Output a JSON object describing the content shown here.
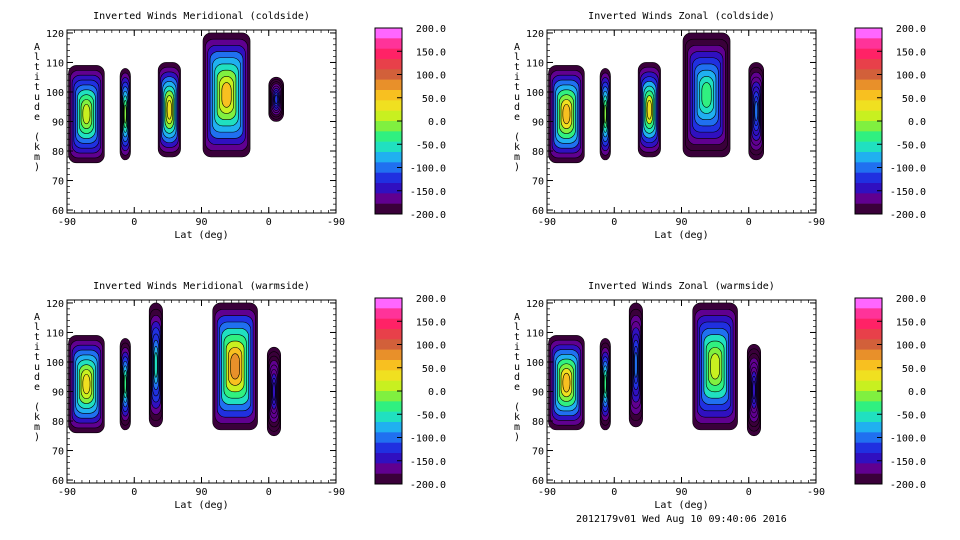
{
  "footer_text": "2012179v01 Wed Aug 10 09:40:06 2016",
  "colorbar": {
    "ticks": [
      "200.0",
      "150.0",
      "100.0",
      "50.0",
      "0.0",
      "-50.0",
      "-100.0",
      "-150.0",
      "-200.0"
    ],
    "colors": [
      "#ff66ff",
      "#ff3399",
      "#ff2266",
      "#e8404a",
      "#d2603a",
      "#e8902a",
      "#f8c020",
      "#f0e020",
      "#c8f020",
      "#80f040",
      "#30f080",
      "#20e0c0",
      "#20b0f0",
      "#2070f0",
      "#2030e0",
      "#3010c0",
      "#600090",
      "#3a003a"
    ]
  },
  "chart_data": [
    {
      "type": "heatmap",
      "title": "Inverted Winds Meridional (coldside)",
      "xlabel": "Lat (deg)",
      "ylabel": "Altitude (km)",
      "xticks": [
        "-90",
        "0",
        "90",
        "0",
        "-90"
      ],
      "yticks": [
        60,
        70,
        80,
        90,
        100,
        110,
        120
      ],
      "ylim": [
        59,
        121
      ],
      "zlim": [
        -200,
        200
      ],
      "colorbar_ticks": [
        200,
        150,
        100,
        50,
        0,
        -50,
        -100,
        -150,
        -200
      ],
      "regions": [
        {
          "lat": [
            -88,
            -40
          ],
          "alt": [
            76,
            109
          ],
          "core_value": 20
        },
        {
          "lat": [
            -19,
            -5
          ],
          "alt": [
            77,
            108
          ],
          "core_value": -20
        },
        {
          "lat": [
            32,
            62
          ],
          "alt": [
            78,
            110
          ],
          "core_value": 40
        },
        {
          "lat": [
            92,
            155
          ],
          "alt": [
            78,
            120
          ],
          "core_value": 45
        },
        {
          "lat": [
            180,
            200
          ],
          "alt": [
            90,
            105
          ],
          "core_value": -120
        }
      ]
    },
    {
      "type": "heatmap",
      "title": "Inverted Winds Zonal (coldside)",
      "xlabel": "Lat (deg)",
      "ylabel": "Altitude (km)",
      "xticks": [
        "-90",
        "0",
        "90",
        "0",
        "-90"
      ],
      "yticks": [
        60,
        70,
        80,
        90,
        100,
        110,
        120
      ],
      "ylim": [
        59,
        121
      ],
      "zlim": [
        -200,
        200
      ],
      "colorbar_ticks": [
        200,
        150,
        100,
        50,
        0,
        -50,
        -100,
        -150,
        -200
      ],
      "regions": [
        {
          "lat": [
            -88,
            -40
          ],
          "alt": [
            76,
            109
          ],
          "core_value": 60
        },
        {
          "lat": [
            -19,
            -5
          ],
          "alt": [
            77,
            108
          ],
          "core_value": 0
        },
        {
          "lat": [
            32,
            62
          ],
          "alt": [
            78,
            110
          ],
          "core_value": 35
        },
        {
          "lat": [
            92,
            155
          ],
          "alt": [
            78,
            120
          ],
          "core_value": -40
        },
        {
          "lat": [
            180,
            200
          ],
          "alt": [
            77,
            110
          ],
          "core_value": -100
        }
      ]
    },
    {
      "type": "heatmap",
      "title": "Inverted Winds Meridional (warmside)",
      "xlabel": "Lat (deg)",
      "ylabel": "Altitude (km)",
      "xticks": [
        "-90",
        "0",
        "90",
        "0",
        "-90"
      ],
      "yticks": [
        60,
        70,
        80,
        90,
        100,
        110,
        120
      ],
      "ylim": [
        59,
        121
      ],
      "zlim": [
        -200,
        200
      ],
      "colorbar_ticks": [
        200,
        150,
        100,
        50,
        0,
        -50,
        -100,
        -150,
        -200
      ],
      "regions": [
        {
          "lat": [
            -88,
            -40
          ],
          "alt": [
            76,
            109
          ],
          "core_value": 40
        },
        {
          "lat": [
            -19,
            -5
          ],
          "alt": [
            77,
            108
          ],
          "core_value": -30
        },
        {
          "lat": [
            20,
            38
          ],
          "alt": [
            78,
            120
          ],
          "core_value": -60
        },
        {
          "lat": [
            105,
            165
          ],
          "alt": [
            77,
            120
          ],
          "core_value": 80
        },
        {
          "lat": [
            178,
            196
          ],
          "alt": [
            75,
            105
          ],
          "core_value": -140
        }
      ]
    },
    {
      "type": "heatmap",
      "title": "Inverted Winds Zonal (warmside)",
      "xlabel": "Lat (deg)",
      "ylabel": "Altitude (km)",
      "xticks": [
        "-90",
        "0",
        "90",
        "0",
        "-90"
      ],
      "yticks": [
        60,
        70,
        80,
        90,
        100,
        110,
        120
      ],
      "ylim": [
        59,
        121
      ],
      "zlim": [
        -200,
        200
      ],
      "colorbar_ticks": [
        200,
        150,
        100,
        50,
        0,
        -50,
        -100,
        -150,
        -200
      ],
      "regions": [
        {
          "lat": [
            -88,
            -40
          ],
          "alt": [
            77,
            109
          ],
          "core_value": 60
        },
        {
          "lat": [
            -19,
            -5
          ],
          "alt": [
            77,
            108
          ],
          "core_value": -40
        },
        {
          "lat": [
            20,
            38
          ],
          "alt": [
            78,
            120
          ],
          "core_value": -100
        },
        {
          "lat": [
            105,
            165
          ],
          "alt": [
            77,
            120
          ],
          "core_value": 15
        },
        {
          "lat": [
            178,
            196
          ],
          "alt": [
            75,
            106
          ],
          "core_value": -140
        }
      ]
    }
  ]
}
